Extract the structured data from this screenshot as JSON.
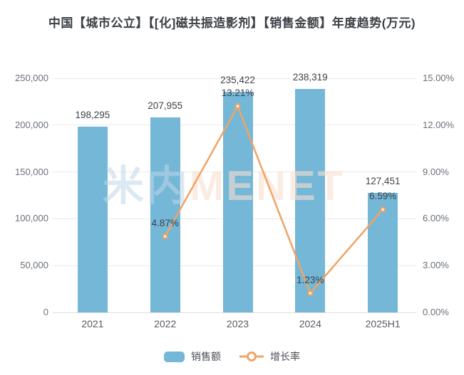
{
  "title": "中国【城市公立】【[化]磁共振造影剂】【销售金额】年度趋势(万元)",
  "watermark": {
    "cn": "米内",
    "en": "MENET"
  },
  "legend": {
    "sales_label": "销售额",
    "growth_label": "增长率"
  },
  "colors": {
    "bar": "#74B7D7",
    "line": "#F0A465",
    "title_text": "#3C4046",
    "axis_text": "#6A7078",
    "axis_strong": "#565B61",
    "label_text": "#3F4348",
    "legend_text": "#4A4E54",
    "grid": "#EBEBEB",
    "axis_line": "#DDDDDD",
    "watermark_cn": "#BFD7E78C",
    "watermark_en": "#F8E0D199"
  },
  "chart_data": {
    "type": "bar",
    "title": "中国【城市公立】【[化]磁共振造影剂】【销售金额】年度趋势(万元)",
    "categories": [
      "2021",
      "2022",
      "2023",
      "2024",
      "2025H1"
    ],
    "series": [
      {
        "name": "销售额",
        "type": "bar",
        "y_axis": "left",
        "values": [
          198295,
          207955,
          235422,
          238319,
          127451
        ],
        "labels": [
          "198,295",
          "207,955",
          "235,422",
          "238,319",
          "127,451"
        ]
      },
      {
        "name": "增长率",
        "type": "line",
        "y_axis": "right",
        "categories": [
          "2022",
          "2023",
          "2024",
          "2025H1"
        ],
        "values": [
          4.87,
          13.21,
          1.23,
          6.59
        ],
        "labels": [
          "4.87%",
          "13.21%",
          "1.23%",
          "6.59%"
        ]
      }
    ],
    "left_axis": {
      "ticks": [
        "0",
        "50,000",
        "100,000",
        "150,000",
        "200,000",
        "250,000"
      ],
      "min": 0,
      "max": 250000
    },
    "right_axis": {
      "ticks": [
        "0.00%",
        "3.00%",
        "6.00%",
        "9.00%",
        "12.00%",
        "15.00%"
      ],
      "min": 0,
      "max": 15
    },
    "grid": true,
    "legend_position": "bottom"
  }
}
